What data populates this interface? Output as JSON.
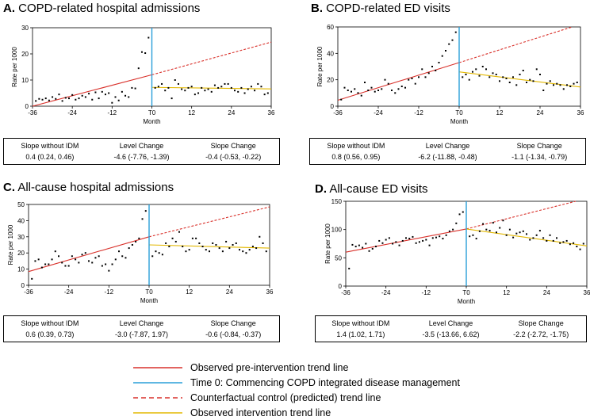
{
  "colors": {
    "pre": "#d9312b",
    "post": "#e3b800",
    "t0": "#2a9fd8",
    "counterfactual": "#d9312b",
    "points": "#000000"
  },
  "panels": [
    {
      "label": "A.",
      "title": "COPD-related hospital admissions",
      "stats": [
        {
          "header": "Slope without IDM",
          "value": "0.4 (0.24, 0.46)"
        },
        {
          "header": "Level Change",
          "value": "-4.6 (-7.76, -1.39)"
        },
        {
          "header": "Slope Change",
          "value": "-0.4 (-0.53, -0.22)"
        }
      ]
    },
    {
      "label": "B.",
      "title": "COPD-related ED visits",
      "stats": [
        {
          "header": "Slope without IDM",
          "value": "0.8 (0.56, 0.95)"
        },
        {
          "header": "Level Change",
          "value": "-6.2 (-11.88, -0.48)"
        },
        {
          "header": "Slope Change",
          "value": "-1.1 (-1.34, -0.79)"
        }
      ]
    },
    {
      "label": "C.",
      "title": "All-cause hospital admissions",
      "stats": [
        {
          "header": "Slope without IDM",
          "value": "0.6 (0.39, 0.73)"
        },
        {
          "header": "Level Change",
          "value": "-3.0 (-7.87, 1.97)"
        },
        {
          "header": "Slope Change",
          "value": "-0.6 (-0.84, -0.37)"
        }
      ]
    },
    {
      "label": "D.",
      "title": "All-cause ED visits",
      "stats": [
        {
          "header": "Slope without IDM",
          "value": "1.4 (1.02, 1.71)"
        },
        {
          "header": "Level Change",
          "value": "-3.5 (-13.66, 6.62)"
        },
        {
          "header": "Slope Change",
          "value": "-2.2 (-2.72, -1.75)"
        }
      ]
    }
  ],
  "legend": [
    {
      "key": "pre",
      "label": "Observed pre-intervention trend line",
      "style": "solid",
      "color": "#d9312b"
    },
    {
      "key": "t0",
      "label": "Time 0: Commencing COPD  integrated disease management",
      "style": "solid",
      "color": "#2a9fd8"
    },
    {
      "key": "cf",
      "label": "Counterfactual control (predicted) trend line",
      "style": "dashed",
      "color": "#d9312b"
    },
    {
      "key": "post",
      "label": "Observed intervention trend line",
      "style": "solid",
      "color": "#e3b800"
    }
  ],
  "chart_data": [
    {
      "type": "scatter",
      "title": "COPD-related hospital admissions",
      "xlabel": "Month",
      "ylabel": "Rate per 1000",
      "xlim": [
        -36,
        36
      ],
      "ylim": [
        0,
        30
      ],
      "xticks": [
        -36,
        -24,
        -12,
        0,
        12,
        24,
        36
      ],
      "xtick_labels": [
        "-36",
        "-24",
        "-12",
        "T0",
        "12",
        "24",
        "36"
      ],
      "yticks": [
        0,
        10,
        20,
        30
      ],
      "intervention_x": 0,
      "pre_trend": {
        "x": [
          -36,
          0
        ],
        "y": [
          0,
          12
        ]
      },
      "counterfactual": {
        "x": [
          0,
          36
        ],
        "y": [
          12,
          24.5
        ]
      },
      "post_trend": {
        "x": [
          0,
          36
        ],
        "y": [
          7.2,
          6.6
        ]
      },
      "points": {
        "x": [
          -35,
          -34,
          -33,
          -32,
          -31,
          -30,
          -29,
          -28,
          -27,
          -26,
          -25,
          -24,
          -23,
          -22,
          -21,
          -20,
          -19,
          -18,
          -17,
          -16,
          -15,
          -14,
          -13,
          -12,
          -11,
          -10,
          -9,
          -8,
          -7,
          -6,
          -5,
          -4,
          -3,
          -2,
          -1,
          1,
          2,
          3,
          4,
          5,
          6,
          7,
          8,
          9,
          10,
          11,
          12,
          13,
          14,
          15,
          16,
          17,
          18,
          19,
          20,
          21,
          22,
          23,
          24,
          25,
          26,
          27,
          28,
          29,
          30,
          31,
          32,
          33,
          34,
          35
        ],
        "y": [
          2.0,
          2.8,
          2.5,
          3.0,
          2.2,
          3.5,
          2.8,
          4.5,
          2.0,
          3.2,
          3.0,
          4.3,
          2.5,
          3.0,
          4.0,
          3.5,
          4.8,
          2.5,
          5.3,
          3.0,
          5.5,
          4.5,
          5.0,
          1.3,
          3.5,
          2.2,
          5.5,
          4.0,
          3.5,
          7.0,
          6.8,
          14.5,
          20.7,
          20.3,
          26.2,
          7.0,
          7.5,
          8.5,
          6.0,
          7.0,
          3.0,
          10.0,
          8.5,
          6.5,
          6.0,
          7.0,
          7.5,
          4.5,
          5.0,
          7.0,
          6.0,
          6.5,
          5.5,
          8.0,
          7.0,
          7.5,
          8.5,
          8.5,
          7.0,
          6.0,
          5.5,
          7.0,
          5.0,
          6.5,
          7.5,
          6.0,
          8.5,
          7.5,
          4.5,
          5.0
        ]
      }
    },
    {
      "type": "scatter",
      "title": "COPD-related ED visits",
      "xlabel": "Month",
      "ylabel": "Rate per 1000",
      "xlim": [
        -36,
        36
      ],
      "ylim": [
        0,
        60
      ],
      "xticks": [
        -36,
        -24,
        -12,
        0,
        12,
        24,
        36
      ],
      "xtick_labels": [
        "-36",
        "-24",
        "-12",
        "T0",
        "12",
        "24",
        "36"
      ],
      "yticks": [
        0,
        20,
        40,
        60
      ],
      "intervention_x": 0,
      "pre_trend": {
        "x": [
          -36,
          0
        ],
        "y": [
          4.5,
          33
        ]
      },
      "counterfactual": {
        "x": [
          0,
          36
        ],
        "y": [
          33,
          62
        ]
      },
      "post_trend": {
        "x": [
          0,
          36
        ],
        "y": [
          26,
          14.5
        ]
      },
      "points": {
        "x": [
          -35,
          -34,
          -33,
          -32,
          -31,
          -30,
          -29,
          -28,
          -27,
          -26,
          -25,
          -24,
          -23,
          -22,
          -21,
          -20,
          -19,
          -18,
          -17,
          -16,
          -15,
          -14,
          -13,
          -12,
          -11,
          -10,
          -9,
          -8,
          -7,
          -6,
          -5,
          -4,
          -3,
          -2,
          -1,
          1,
          2,
          3,
          4,
          5,
          6,
          7,
          8,
          9,
          10,
          11,
          12,
          13,
          14,
          15,
          16,
          17,
          18,
          19,
          20,
          21,
          22,
          23,
          24,
          25,
          26,
          27,
          28,
          29,
          30,
          31,
          32,
          33,
          34,
          35
        ],
        "y": [
          5,
          14,
          12,
          11,
          13,
          10,
          8,
          18,
          12,
          14,
          11,
          12,
          13,
          20,
          17,
          12,
          10,
          13,
          15,
          14,
          20,
          21,
          17,
          22,
          28,
          22,
          25,
          30,
          27,
          33,
          38,
          42,
          47,
          50,
          56,
          22,
          24,
          20,
          26,
          28,
          23,
          30,
          28,
          22,
          25,
          24,
          19,
          22,
          21,
          18,
          22,
          16,
          24,
          27,
          18,
          20,
          19,
          28,
          24,
          12,
          17,
          19,
          16,
          17,
          16,
          13,
          16,
          15,
          17,
          18
        ]
      }
    },
    {
      "type": "scatter",
      "title": "All-cause hospital admissions",
      "xlabel": "Month",
      "ylabel": "Rate per 1000",
      "xlim": [
        -36,
        36
      ],
      "ylim": [
        0,
        50
      ],
      "xticks": [
        -36,
        -24,
        -12,
        0,
        12,
        24,
        36
      ],
      "xtick_labels": [
        "-36",
        "-24",
        "-12",
        "T0",
        "12",
        "24",
        "36"
      ],
      "yticks": [
        0,
        10,
        20,
        30,
        40,
        50
      ],
      "intervention_x": 0,
      "pre_trend": {
        "x": [
          -36,
          0
        ],
        "y": [
          8.5,
          30
        ]
      },
      "counterfactual": {
        "x": [
          0,
          36
        ],
        "y": [
          30,
          48.5
        ]
      },
      "post_trend": {
        "x": [
          0,
          36
        ],
        "y": [
          25,
          23
        ]
      },
      "points": {
        "x": [
          -35,
          -34,
          -33,
          -32,
          -31,
          -30,
          -29,
          -28,
          -27,
          -26,
          -25,
          -24,
          -23,
          -22,
          -21,
          -20,
          -19,
          -18,
          -17,
          -16,
          -15,
          -14,
          -13,
          -12,
          -11,
          -10,
          -9,
          -8,
          -7,
          -6,
          -5,
          -4,
          -3,
          -2,
          -1,
          1,
          2,
          3,
          4,
          5,
          6,
          7,
          8,
          9,
          10,
          11,
          12,
          13,
          14,
          15,
          16,
          17,
          18,
          19,
          20,
          21,
          22,
          23,
          24,
          25,
          26,
          27,
          28,
          29,
          30,
          31,
          32,
          33,
          34,
          35
        ],
        "y": [
          4,
          15,
          16,
          11,
          13,
          13,
          16,
          21,
          18,
          14,
          12,
          12,
          18,
          16,
          14,
          19,
          20,
          15,
          14,
          17,
          18,
          12,
          13,
          9,
          13,
          16,
          21,
          18,
          17,
          23,
          25,
          27,
          29,
          41,
          46,
          18,
          21,
          20,
          19,
          26,
          24,
          29,
          27,
          33,
          24,
          21,
          22,
          29,
          29,
          26,
          24,
          22,
          21,
          26,
          25,
          23,
          21,
          27,
          23,
          25,
          26,
          22,
          21,
          20,
          22,
          24,
          23,
          30,
          26,
          21
        ]
      }
    },
    {
      "type": "scatter",
      "title": "All-cause ED visits",
      "xlabel": "Month",
      "ylabel": "Rate per 1000",
      "xlim": [
        -36,
        36
      ],
      "ylim": [
        0,
        150
      ],
      "xticks": [
        -36,
        -24,
        -12,
        0,
        12,
        24,
        36
      ],
      "xtick_labels": [
        "-36",
        "-24",
        "-12",
        "T0",
        "12",
        "24",
        "36"
      ],
      "yticks": [
        0,
        50,
        100,
        150
      ],
      "intervention_x": 0,
      "pre_trend": {
        "x": [
          -36,
          0
        ],
        "y": [
          60,
          101
        ]
      },
      "counterfactual": {
        "x": [
          0,
          36
        ],
        "y": [
          101,
          155
        ]
      },
      "post_trend": {
        "x": [
          0,
          36
        ],
        "y": [
          101,
          71
        ]
      },
      "points": {
        "x": [
          -35,
          -34,
          -33,
          -32,
          -31,
          -30,
          -29,
          -28,
          -27,
          -26,
          -25,
          -24,
          -23,
          -22,
          -21,
          -20,
          -19,
          -18,
          -17,
          -16,
          -15,
          -14,
          -13,
          -12,
          -11,
          -10,
          -9,
          -8,
          -7,
          -6,
          -5,
          -4,
          -3,
          -2,
          -1,
          1,
          2,
          3,
          4,
          5,
          6,
          7,
          8,
          9,
          10,
          11,
          12,
          13,
          14,
          15,
          16,
          17,
          18,
          19,
          20,
          21,
          22,
          23,
          24,
          25,
          26,
          27,
          28,
          29,
          30,
          31,
          32,
          33,
          34,
          35
        ],
        "y": [
          31,
          73,
          70,
          72,
          68,
          75,
          62,
          66,
          70,
          80,
          76,
          82,
          85,
          75,
          78,
          72,
          80,
          85,
          84,
          87,
          76,
          78,
          80,
          82,
          72,
          85,
          86,
          88,
          84,
          90,
          97,
          100,
          111,
          127,
          131,
          88,
          90,
          84,
          97,
          110,
          100,
          98,
          112,
          95,
          103,
          116,
          90,
          100,
          86,
          93,
          95,
          97,
          92,
          82,
          85,
          90,
          98,
          85,
          80,
          90,
          80,
          85,
          76,
          78,
          80,
          74,
          76,
          70,
          65,
          75
        ]
      }
    }
  ]
}
